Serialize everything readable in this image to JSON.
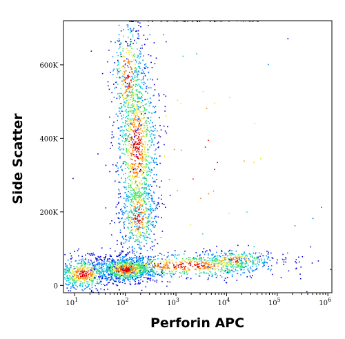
{
  "chart_data": {
    "type": "scatter",
    "subtype": "flow-cytometry density dot plot",
    "xlabel": "Perforin APC",
    "ylabel": "Side Scatter",
    "x_scale": "log",
    "xlim": [
      6,
      1200000
    ],
    "ylim": [
      -20000,
      720000
    ],
    "x_ticks": [
      {
        "base": "10",
        "exp": "1",
        "value": 10
      },
      {
        "base": "10",
        "exp": "2",
        "value": 100
      },
      {
        "base": "10",
        "exp": "3",
        "value": 1000
      },
      {
        "base": "10",
        "exp": "4",
        "value": 10000
      },
      {
        "base": "10",
        "exp": "5",
        "value": 100000
      },
      {
        "base": "10",
        "exp": "6",
        "value": 1000000
      }
    ],
    "y_ticks": [
      {
        "label": "0",
        "value": 0
      },
      {
        "label": "200K",
        "value": 200000
      },
      {
        "label": "400K",
        "value": 400000
      },
      {
        "label": "600K",
        "value": 600000
      }
    ],
    "density_colors": [
      "#0000cc",
      "#0080ff",
      "#00d0d0",
      "#40e060",
      "#e8e830",
      "#ff8000",
      "#e00000"
    ],
    "populations": [
      {
        "x_center": 100,
        "y_center": 45000,
        "relative_density": 1.0
      },
      {
        "x_center": 150,
        "y_center": 380000,
        "relative_density": 0.55
      },
      {
        "x_center": 150,
        "y_center": 190000,
        "relative_density": 0.4
      },
      {
        "x_center": 15000,
        "y_center": 70000,
        "relative_density": 0.3
      }
    ],
    "grid": false,
    "legend": "none"
  }
}
